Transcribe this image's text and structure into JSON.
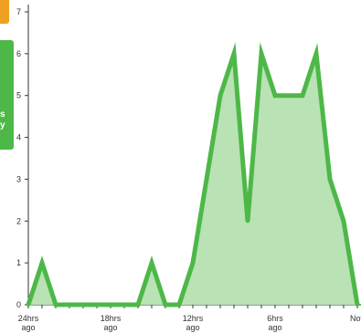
{
  "side_tab": {
    "text": "s\ny",
    "colors": {
      "orange": "#f0a020",
      "green": "#4db848"
    }
  },
  "chart_data": {
    "type": "area",
    "title": "",
    "xlabel": "",
    "ylabel": "",
    "ylim": [
      0,
      7
    ],
    "yticks": [
      0,
      1,
      2,
      3,
      4,
      5,
      6,
      7
    ],
    "x_tick_labels": [
      {
        "index": 0,
        "lines": [
          "24hrs",
          "ago"
        ]
      },
      {
        "index": 6,
        "lines": [
          "18hrs",
          "ago"
        ]
      },
      {
        "index": 12,
        "lines": [
          "12hrs",
          "ago"
        ]
      },
      {
        "index": 18,
        "lines": [
          "6hrs",
          "ago"
        ]
      },
      {
        "index": 24,
        "lines": [
          "Nov"
        ]
      }
    ],
    "values": [
      0,
      1,
      0,
      0,
      0,
      0,
      0,
      0,
      0,
      1,
      0,
      0,
      1,
      3,
      5,
      6,
      2,
      6,
      5,
      5,
      5,
      6,
      3,
      2,
      0
    ],
    "grid": false,
    "colors": {
      "line": "#4db848",
      "fill": "#b9e2b5"
    }
  }
}
